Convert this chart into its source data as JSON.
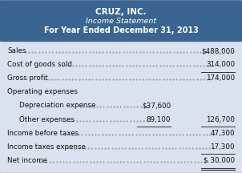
{
  "title_line1": "CRUZ, INC.",
  "title_line2": "Income Statement",
  "title_line3": "For Year Ended December 31, 2013",
  "header_bg": "#3a6592",
  "body_bg": "#d9e2ee",
  "title_color": "#ffffff",
  "text_color": "#111111",
  "rows": [
    {
      "label": "Sales",
      "dots": true,
      "col1": "",
      "col2": "$488,000",
      "underline_col2": false,
      "underline_col1": false,
      "indent": 0,
      "double_underline": false
    },
    {
      "label": "Cost of goods sold",
      "dots": true,
      "col1": "",
      "col2": "314,000",
      "underline_col2": true,
      "underline_col1": false,
      "indent": 0,
      "double_underline": false
    },
    {
      "label": "Gross profit",
      "dots": true,
      "col1": "",
      "col2": "174,000",
      "underline_col2": false,
      "underline_col1": false,
      "indent": 0,
      "double_underline": false
    },
    {
      "label": "Operating expenses",
      "dots": false,
      "col1": "",
      "col2": "",
      "underline_col2": false,
      "underline_col1": false,
      "indent": 0,
      "double_underline": false
    },
    {
      "label": "Depreciation expense",
      "dots": true,
      "col1": "$37,600",
      "col2": "",
      "underline_col2": false,
      "underline_col1": false,
      "indent": 1,
      "double_underline": false
    },
    {
      "label": "Other expenses",
      "dots": true,
      "col1": "89,100",
      "col2": "126,700",
      "underline_col2": true,
      "underline_col1": true,
      "indent": 1,
      "double_underline": false
    },
    {
      "label": "Income before taxes",
      "dots": true,
      "col1": "",
      "col2": "47,300",
      "underline_col2": false,
      "underline_col1": false,
      "indent": 0,
      "double_underline": false
    },
    {
      "label": "Income taxes expense",
      "dots": true,
      "col1": "",
      "col2": "17,300",
      "underline_col2": true,
      "underline_col1": false,
      "indent": 0,
      "double_underline": false
    },
    {
      "label": "Net income",
      "dots": true,
      "col1": "",
      "col2": "$ 30,000",
      "underline_col2": false,
      "underline_col1": false,
      "indent": 0,
      "double_underline": true
    }
  ],
  "figsize": [
    3.02,
    2.16
  ],
  "dpi": 100
}
